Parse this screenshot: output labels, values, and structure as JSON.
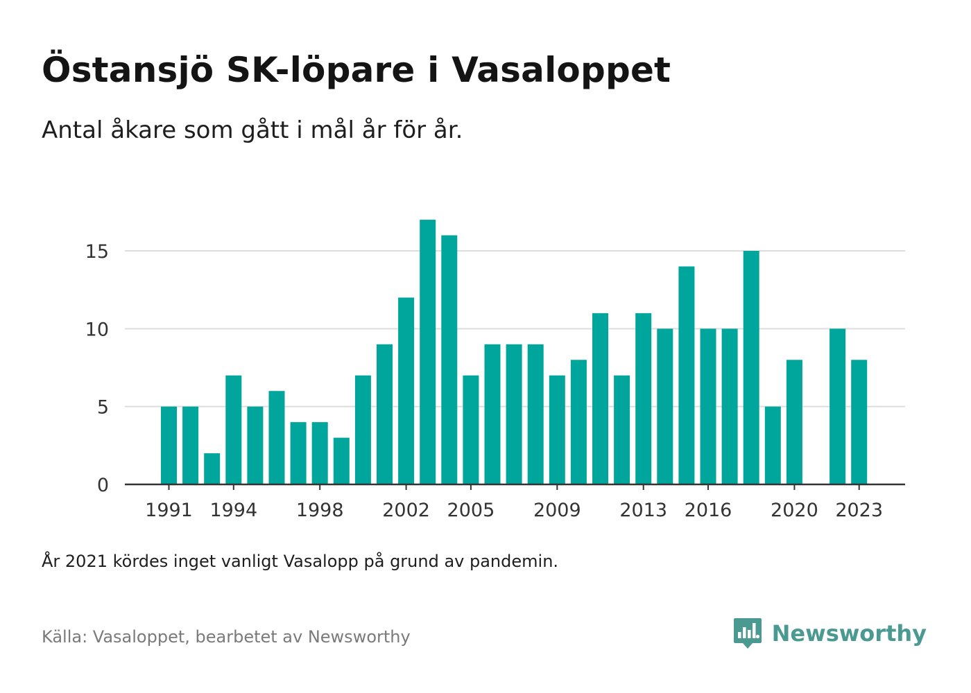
{
  "header": {
    "title": "Östansjö SK-löpare i Vasaloppet",
    "subtitle": "Antal åkare som gått i mål år för år."
  },
  "footer": {
    "note": "År 2021 kördes inget vanligt Vasalopp på grund av pandemin.",
    "source": "Källa: Vasaloppet, bearbetet av Newsworthy",
    "brand_name": "Newsworthy",
    "brand_icon": "newsworthy-logo-icon"
  },
  "colors": {
    "bar": "#00a69c",
    "brand": "#4a9a92",
    "grid": "#dddddd",
    "axis": "#333333",
    "tick_text": "#333333"
  },
  "chart_data": {
    "type": "bar",
    "title": "Östansjö SK-löpare i Vasaloppet",
    "subtitle": "Antal åkare som gått i mål år för år.",
    "xlabel": "",
    "ylabel": "",
    "categories": [
      1991,
      1992,
      1993,
      1994,
      1995,
      1996,
      1997,
      1998,
      1999,
      2000,
      2001,
      2002,
      2003,
      2004,
      2005,
      2006,
      2007,
      2008,
      2009,
      2010,
      2011,
      2012,
      2013,
      2014,
      2015,
      2016,
      2017,
      2018,
      2019,
      2020,
      2021,
      2022,
      2023
    ],
    "values": [
      5,
      5,
      2,
      7,
      5,
      6,
      4,
      4,
      3,
      7,
      9,
      12,
      17,
      16,
      7,
      9,
      9,
      9,
      7,
      8,
      11,
      7,
      11,
      10,
      14,
      10,
      10,
      15,
      5,
      8,
      null,
      10,
      8
    ],
    "x_tick_labels": [
      "1991",
      "1994",
      "1998",
      "2002",
      "2005",
      "2009",
      "2013",
      "2016",
      "2020",
      "2023"
    ],
    "y_ticks": [
      0,
      5,
      10,
      15
    ],
    "ylim": [
      0,
      18
    ],
    "grid": "horizontal",
    "legend": "none"
  }
}
